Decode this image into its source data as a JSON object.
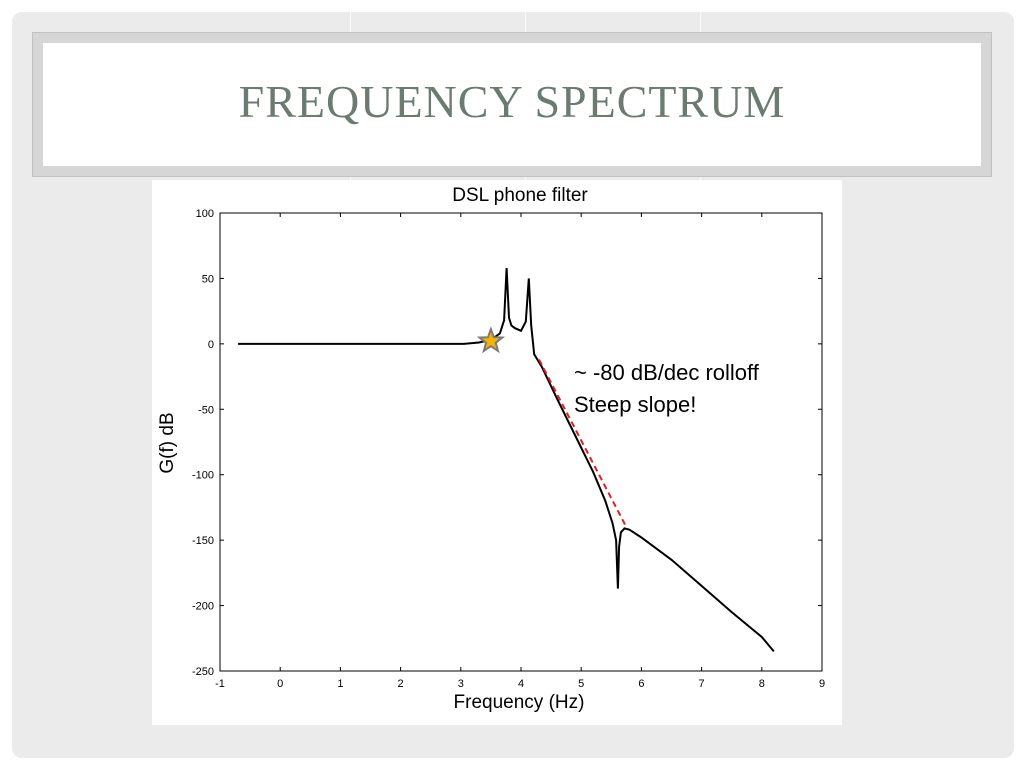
{
  "slide": {
    "title": "FREQUENCY SPECTRUM"
  },
  "colors": {
    "title": "#6b7b70",
    "curve": "#000000",
    "rolloff_line": "#e0201c",
    "star_fill": "#f4b400",
    "star_stroke": "#7a7a7a"
  },
  "annotation": {
    "line1": "~ -80 dB/dec rolloff",
    "line2": "Steep slope!",
    "marker_icon": "star-icon"
  },
  "chart_data": {
    "type": "line",
    "title": "DSL phone filter",
    "xlabel": "Frequency (Hz)",
    "ylabel": "G(f) dB",
    "xlim": [
      -1,
      9
    ],
    "ylim": [
      -250,
      100
    ],
    "xticks": [
      "-1",
      "0",
      "1",
      "2",
      "3",
      "4",
      "5",
      "6",
      "7",
      "8",
      "9"
    ],
    "yticks": [
      "100",
      "50",
      "0",
      "-50",
      "-100",
      "-150",
      "-200",
      "-250"
    ],
    "grid": false,
    "series": [
      {
        "x": [
          -0.7,
          2.8,
          3.05,
          3.3,
          3.5,
          3.65,
          3.72,
          3.76,
          3.8,
          3.84,
          3.9,
          4.0,
          4.08,
          4.13,
          4.17,
          4.22,
          4.35,
          4.6,
          4.9,
          5.2,
          5.4,
          5.52,
          5.58,
          5.61,
          5.63,
          5.66,
          5.72,
          5.8,
          6.0,
          6.5,
          7.0,
          7.5,
          8.0,
          8.2
        ],
        "y": [
          0,
          0,
          0,
          1,
          3,
          8,
          18,
          58,
          20,
          14,
          12,
          10,
          17,
          50,
          14,
          -8,
          -18,
          -42,
          -70,
          -98,
          -120,
          -137,
          -150,
          -187,
          -155,
          -144,
          -141,
          -142,
          -148,
          -165,
          -185,
          -205,
          -224,
          -235
        ]
      },
      {
        "x": [
          4.3,
          5.75
        ],
        "y": [
          -12,
          -140
        ]
      }
    ],
    "marker": {
      "x": 3.5,
      "y": 2
    }
  }
}
